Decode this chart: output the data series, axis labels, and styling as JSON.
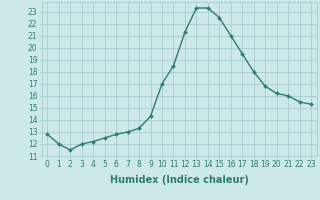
{
  "x": [
    0,
    1,
    2,
    3,
    4,
    5,
    6,
    7,
    8,
    9,
    10,
    11,
    12,
    13,
    14,
    15,
    16,
    17,
    18,
    19,
    20,
    21,
    22,
    23
  ],
  "y": [
    12.8,
    12.0,
    11.5,
    12.0,
    12.2,
    12.5,
    12.8,
    13.0,
    13.3,
    14.3,
    17.0,
    18.5,
    21.3,
    23.3,
    23.3,
    22.5,
    21.0,
    19.5,
    18.0,
    16.8,
    16.2,
    16.0,
    15.5,
    15.3
  ],
  "line_color": "#2e7d6e",
  "marker": "D",
  "marker_size": 2.0,
  "bg_color": "#cce8e8",
  "grid_color": "#aacccc",
  "xlabel": "Humidex (Indice chaleur)",
  "xlim": [
    -0.5,
    23.5
  ],
  "ylim": [
    11.0,
    23.8
  ],
  "yticks": [
    11,
    12,
    13,
    14,
    15,
    16,
    17,
    18,
    19,
    20,
    21,
    22,
    23
  ],
  "xticks": [
    0,
    1,
    2,
    3,
    4,
    5,
    6,
    7,
    8,
    9,
    10,
    11,
    12,
    13,
    14,
    15,
    16,
    17,
    18,
    19,
    20,
    21,
    22,
    23
  ],
  "tick_fontsize": 5.5,
  "label_fontsize": 7.0,
  "tick_color": "#2e7d6e",
  "linewidth": 1.0
}
